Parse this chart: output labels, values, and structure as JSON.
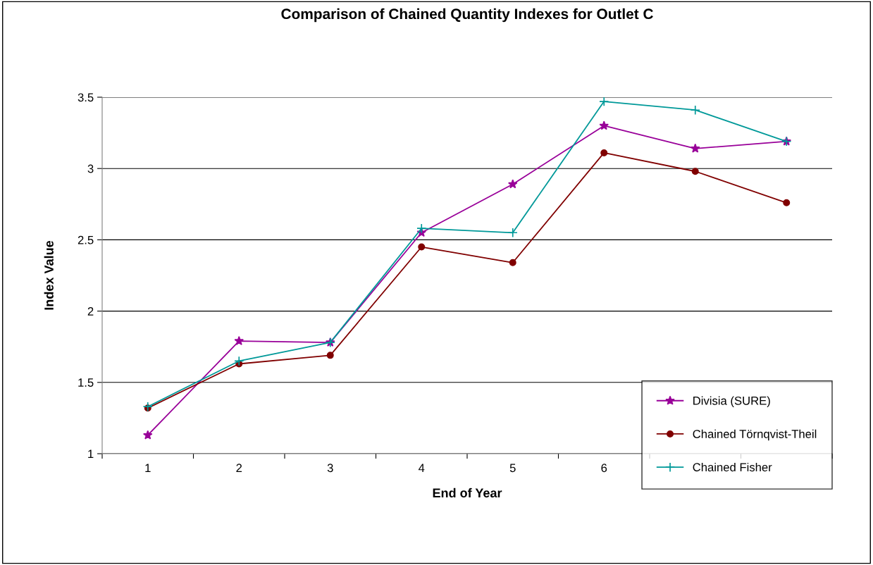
{
  "chart_data": {
    "type": "line",
    "title": "Comparison of Chained Quantity Indexes for Outlet C",
    "xlabel": "End of Year",
    "ylabel": "Index Value",
    "categories": [
      "1",
      "2",
      "3",
      "4",
      "5",
      "6",
      null,
      null
    ],
    "series": [
      {
        "name": "Divisia (SURE)",
        "color": "#990099",
        "marker": "star",
        "values": [
          1.13,
          1.79,
          1.78,
          2.55,
          2.89,
          3.3,
          3.14,
          3.19
        ]
      },
      {
        "name": "Chained Törnqvist-Theil",
        "color": "#800000",
        "marker": "circle",
        "values": [
          1.32,
          1.63,
          1.69,
          2.45,
          2.34,
          3.11,
          2.98,
          2.76
        ]
      },
      {
        "name": "Chained Fisher",
        "color": "#009999",
        "marker": "cross",
        "values": [
          1.33,
          1.65,
          1.78,
          2.58,
          2.55,
          3.47,
          3.41,
          3.19
        ]
      }
    ],
    "ylim": [
      1,
      3.5
    ],
    "yticks": [
      1,
      1.5,
      2,
      2.5,
      3,
      3.5
    ],
    "grid": "y",
    "legend": "bottom right"
  }
}
